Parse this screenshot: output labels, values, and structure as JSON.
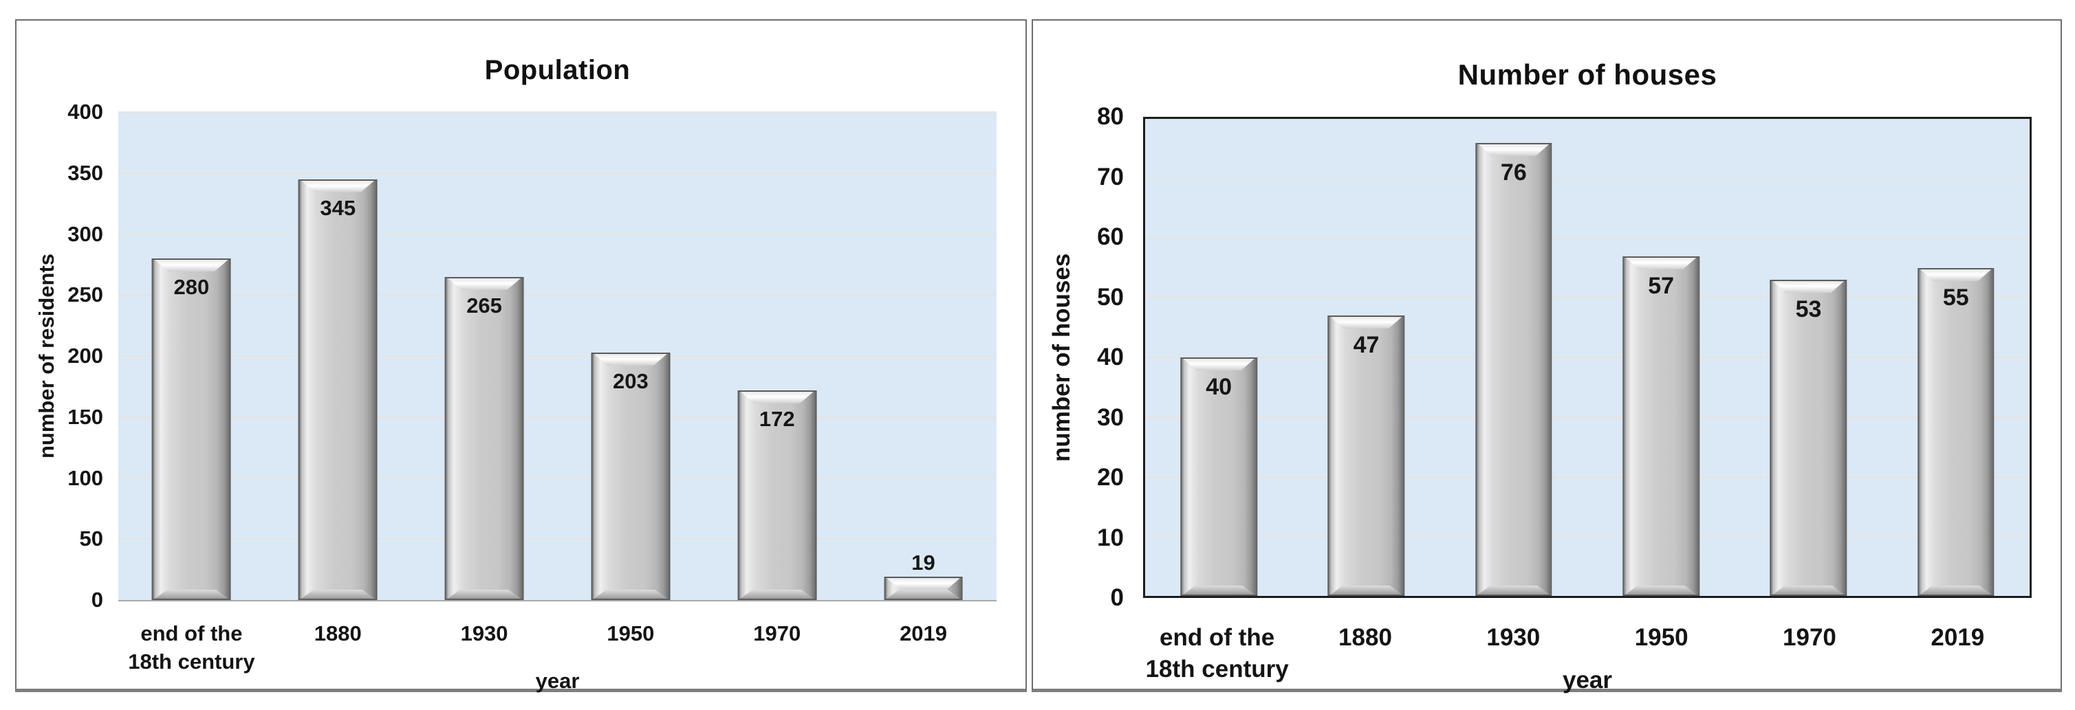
{
  "page": {
    "background": "#ffffff"
  },
  "chart_data": [
    {
      "type": "bar",
      "title": "Population",
      "categories": [
        "end of the\n18th century",
        "1880",
        "1930",
        "1950",
        "1970",
        "2019"
      ],
      "values": [
        280,
        345,
        265,
        203,
        172,
        19
      ],
      "data_labels": [
        "280",
        "345",
        "265",
        "203",
        "172",
        "19"
      ],
      "xlabel": "year",
      "ylabel": "number of residents",
      "ylim": [
        0,
        400
      ],
      "ytick_step": 50,
      "ytick_labels": [
        "0",
        "50",
        "100",
        "150",
        "200",
        "250",
        "300",
        "350",
        "400"
      ],
      "grid": true,
      "legend": false
    },
    {
      "type": "bar",
      "title": "Number of houses",
      "categories": [
        "end of the\n18th century",
        "1880",
        "1930",
        "1950",
        "1970",
        "2019"
      ],
      "values": [
        40,
        47,
        76,
        57,
        53,
        55
      ],
      "data_labels": [
        "40",
        "47",
        "76",
        "57",
        "53",
        "55"
      ],
      "xlabel": "year",
      "ylabel": "number of houses",
      "ylim": [
        0,
        80
      ],
      "ytick_step": 10,
      "ytick_labels": [
        "0",
        "10",
        "20",
        "30",
        "40",
        "50",
        "60",
        "70",
        "80"
      ],
      "grid": true,
      "legend": false
    }
  ],
  "style": {
    "plot_bg": "#dbe9f6",
    "grid_color": "#e7e3df",
    "bar_face": "#cbcbcb",
    "bar_edge": "#5c5c5c",
    "left_chart_axis_color": "#a9a9a9",
    "right_chart_border_color": "#1c1c1c",
    "panel_border_color": "#6f6f6f",
    "text_color": "#141414"
  }
}
